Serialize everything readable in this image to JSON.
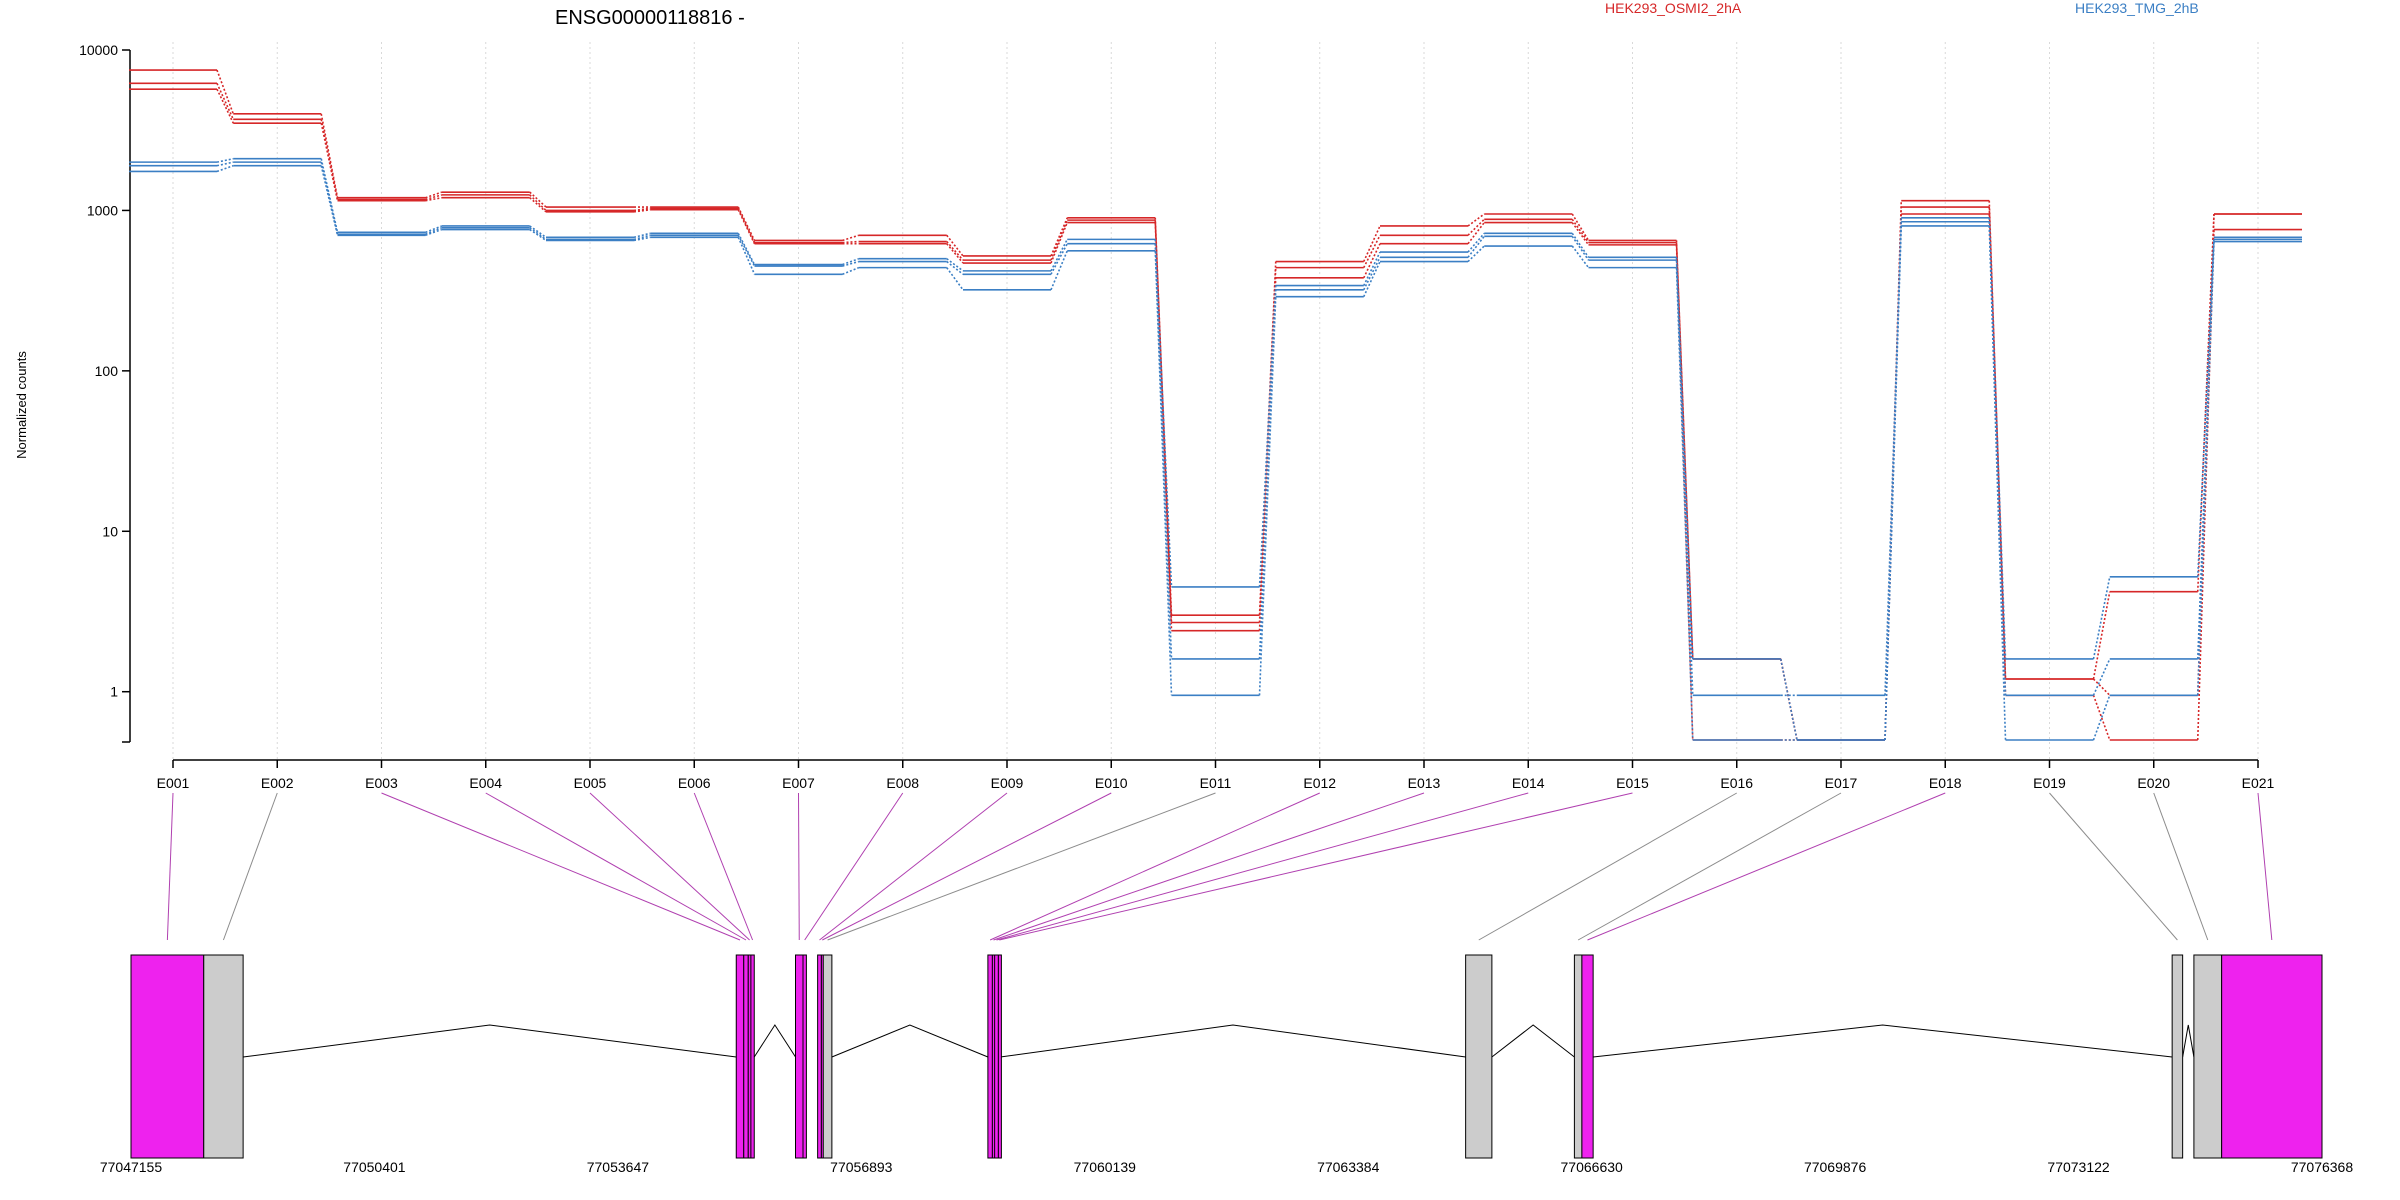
{
  "chart_data": {
    "type": "line",
    "title": "ENSG00000118816 -",
    "xlabel": "",
    "ylabel": "Normalized counts",
    "y_scale": "log",
    "ylim": [
      0.5,
      10000
    ],
    "y_ticks": [
      {
        "value": 1,
        "label": "1"
      },
      {
        "value": 10,
        "label": "10"
      },
      {
        "value": 100,
        "label": "100"
      },
      {
        "value": 1000,
        "label": "1000"
      },
      {
        "value": 10000,
        "label": "10000"
      }
    ],
    "categories": [
      "E001",
      "E002",
      "E003",
      "E004",
      "E005",
      "E006",
      "E007",
      "E008",
      "E009",
      "E010",
      "E011",
      "E012",
      "E013",
      "E014",
      "E015",
      "E016",
      "E017",
      "E018",
      "E019",
      "E020",
      "E021"
    ],
    "grid": true,
    "legend_position": "top",
    "groups": [
      {
        "name": "HEK293_OSMI2_2hA",
        "color": "#d62728"
      },
      {
        "name": "HEK293_TMG_2hB",
        "color": "#3b7fc4"
      }
    ],
    "series": [
      {
        "group": 0,
        "values": [
          7500,
          4000,
          1200,
          1300,
          1050,
          1050,
          650,
          700,
          520,
          900,
          3.0,
          480,
          800,
          950,
          650,
          1.6,
          0.5,
          1150,
          1.2,
          4.2,
          950
        ]
      },
      {
        "group": 0,
        "values": [
          6200,
          3700,
          1170,
          1250,
          1000,
          1030,
          630,
          640,
          490,
          870,
          2.7,
          440,
          700,
          880,
          630,
          1.6,
          0.5,
          1050,
          1.2,
          0.95,
          950
        ]
      },
      {
        "group": 0,
        "values": [
          5700,
          3500,
          1150,
          1200,
          980,
          1010,
          620,
          620,
          470,
          840,
          2.4,
          380,
          620,
          840,
          610,
          0.5,
          0.5,
          950,
          0.95,
          0.5,
          760
        ]
      },
      {
        "group": 1,
        "values": [
          2000,
          2100,
          730,
          800,
          680,
          720,
          460,
          500,
          420,
          660,
          4.5,
          340,
          550,
          720,
          510,
          1.6,
          0.5,
          900,
          1.6,
          5.2,
          680
        ]
      },
      {
        "group": 1,
        "values": [
          1900,
          2000,
          710,
          780,
          660,
          700,
          450,
          480,
          400,
          620,
          1.6,
          320,
          510,
          690,
          490,
          0.95,
          0.95,
          850,
          0.95,
          1.6,
          660
        ]
      },
      {
        "group": 1,
        "values": [
          1750,
          1900,
          700,
          760,
          650,
          680,
          400,
          440,
          320,
          560,
          0.95,
          290,
          480,
          600,
          440,
          0.5,
          0.5,
          800,
          0.5,
          0.95,
          640
        ]
      }
    ],
    "gene_model": {
      "coordinate_labels": [
        "77047155",
        "77050401",
        "77053647",
        "77056893",
        "77060139",
        "77063384",
        "77066630",
        "77069876",
        "77073122",
        "77076368"
      ],
      "range": [
        77047155,
        77076368
      ],
      "exons": [
        {
          "id": "E001",
          "start": 77047155,
          "end": 77048125,
          "highlight": true
        },
        {
          "id": "E002",
          "start": 77048125,
          "end": 77048650,
          "highlight": false
        },
        {
          "id": "E003",
          "start": 77055225,
          "end": 77055325,
          "highlight": true
        },
        {
          "id": "E004",
          "start": 77055325,
          "end": 77055385,
          "highlight": true
        },
        {
          "id": "E005",
          "start": 77055385,
          "end": 77055420,
          "highlight": true
        },
        {
          "id": "E006",
          "start": 77055420,
          "end": 77055465,
          "highlight": true
        },
        {
          "id": "E007",
          "start": 77056015,
          "end": 77056115,
          "highlight": true
        },
        {
          "id": "E008",
          "start": 77056115,
          "end": 77056160,
          "highlight": true
        },
        {
          "id": "E009",
          "start": 77056310,
          "end": 77056360,
          "highlight": true
        },
        {
          "id": "E010",
          "start": 77056360,
          "end": 77056385,
          "highlight": true
        },
        {
          "id": "E011",
          "start": 77056385,
          "end": 77056500,
          "highlight": false
        },
        {
          "id": "E012",
          "start": 77058580,
          "end": 77058640,
          "highlight": true
        },
        {
          "id": "E013",
          "start": 77058640,
          "end": 77058670,
          "highlight": true
        },
        {
          "id": "E014",
          "start": 77058670,
          "end": 77058720,
          "highlight": true
        },
        {
          "id": "E015",
          "start": 77058720,
          "end": 77058745,
          "highlight": true
        },
        {
          "id": "E016",
          "start": 77064950,
          "end": 77065300,
          "highlight": false
        },
        {
          "id": "E017",
          "start": 77066400,
          "end": 77066500,
          "highlight": false
        },
        {
          "id": "E018",
          "start": 77066500,
          "end": 77066650,
          "highlight": true
        },
        {
          "id": "E019",
          "start": 77074370,
          "end": 77074510,
          "highlight": false
        },
        {
          "id": "E020",
          "start": 77074660,
          "end": 77075030,
          "highlight": false
        },
        {
          "id": "E021",
          "start": 77075030,
          "end": 77076368,
          "highlight": true
        }
      ],
      "introns": [
        [
          77048650,
          77055225
        ],
        [
          77055465,
          77056015
        ],
        [
          77056500,
          77058580
        ],
        [
          77058745,
          77064950
        ],
        [
          77065300,
          77066400
        ],
        [
          77066650,
          77074370
        ],
        [
          77074510,
          77074660
        ]
      ]
    },
    "colors": {
      "highlight_exon": "#ee22ee",
      "normal_exon": "#cccccc",
      "highlight_link": "#b040b0",
      "normal_link": "#8c8c8c",
      "grid": "#d9d9d9",
      "axis": "#000000"
    }
  }
}
